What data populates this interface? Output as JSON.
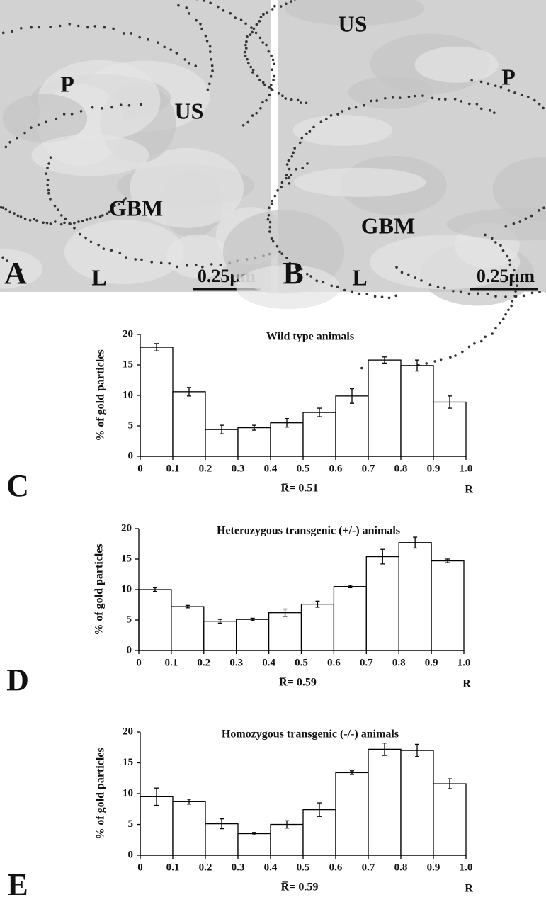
{
  "images": [
    {
      "panel": "A",
      "labels": [
        "P",
        "US",
        "GBM",
        "L"
      ],
      "scale_bar": "0.25µm"
    },
    {
      "panel": "B",
      "labels": [
        "US",
        "P",
        "GBM",
        "L"
      ],
      "scale_bar": "0.25µm"
    }
  ],
  "chart_data": [
    {
      "type": "histogram",
      "panel": "C",
      "title": "Wild type animals",
      "ylabel": "% of gold particles",
      "xlabel": "R",
      "annotation": "R̅= 0.51",
      "bins": [
        0,
        0.1,
        0.2,
        0.3,
        0.4,
        0.5,
        0.6,
        0.7,
        0.8,
        0.9,
        1
      ],
      "values": [
        17.9,
        10.6,
        4.4,
        4.7,
        5.5,
        7.2,
        9.9,
        15.8,
        14.9,
        8.9
      ],
      "errors": [
        0.6,
        0.7,
        0.7,
        0.4,
        0.7,
        0.7,
        1.2,
        0.5,
        0.9,
        1.0
      ],
      "color": "#ffffff",
      "xlim": [
        0,
        1
      ],
      "ylim": [
        0,
        20
      ],
      "xticks": [
        0,
        0.1,
        0.2,
        0.3,
        0.4,
        0.5,
        0.6,
        0.7,
        0.8,
        0.9,
        {
          "value": 1,
          "label": "1.0"
        }
      ],
      "yticks": [
        0,
        5,
        10,
        15,
        20
      ]
    },
    {
      "type": "histogram",
      "panel": "D",
      "title": "Heterozygous transgenic (+/-) animals",
      "ylabel": "% of gold particles",
      "xlabel": "R",
      "annotation": "R̅= 0.59",
      "bins": [
        0,
        0.1,
        0.2,
        0.3,
        0.4,
        0.5,
        0.6,
        0.7,
        0.8,
        0.9,
        1
      ],
      "values": [
        10.0,
        7.2,
        4.8,
        5.1,
        6.2,
        7.6,
        10.5,
        15.4,
        17.7,
        14.7
      ],
      "errors": [
        0.3,
        0.2,
        0.3,
        0.2,
        0.6,
        0.5,
        0.2,
        1.2,
        0.9,
        0.3
      ],
      "color": "#ffffff",
      "xlim": [
        0,
        1
      ],
      "ylim": [
        0,
        20
      ],
      "xticks": [
        0,
        0.1,
        0.2,
        0.3,
        0.4,
        0.5,
        0.6,
        0.7,
        0.8,
        0.9,
        {
          "value": 1,
          "label": "1.0"
        }
      ],
      "yticks": [
        0,
        5,
        10,
        15,
        20
      ]
    },
    {
      "type": "histogram",
      "panel": "E",
      "title": "Homozygous transgenic (-/-) animals",
      "ylabel": "% of gold particles",
      "xlabel": "R",
      "annotation": "R̅= 0.59",
      "bins": [
        0,
        0.1,
        0.2,
        0.3,
        0.4,
        0.5,
        0.6,
        0.7,
        0.8,
        0.9,
        1
      ],
      "values": [
        9.5,
        8.7,
        5.1,
        3.5,
        5.0,
        7.4,
        13.4,
        17.2,
        17.0,
        11.6
      ],
      "errors": [
        1.4,
        0.4,
        0.8,
        0.2,
        0.6,
        1.1,
        0.3,
        1.0,
        1.0,
        0.8
      ],
      "color": "#ffffff",
      "xlim": [
        0,
        1
      ],
      "ylim": [
        0,
        20
      ],
      "xticks": [
        0,
        0.1,
        0.2,
        0.3,
        0.4,
        0.5,
        0.6,
        0.7,
        0.8,
        0.9,
        {
          "value": 1,
          "label": "1.0"
        }
      ],
      "yticks": [
        0,
        5,
        10,
        15,
        20
      ]
    }
  ]
}
